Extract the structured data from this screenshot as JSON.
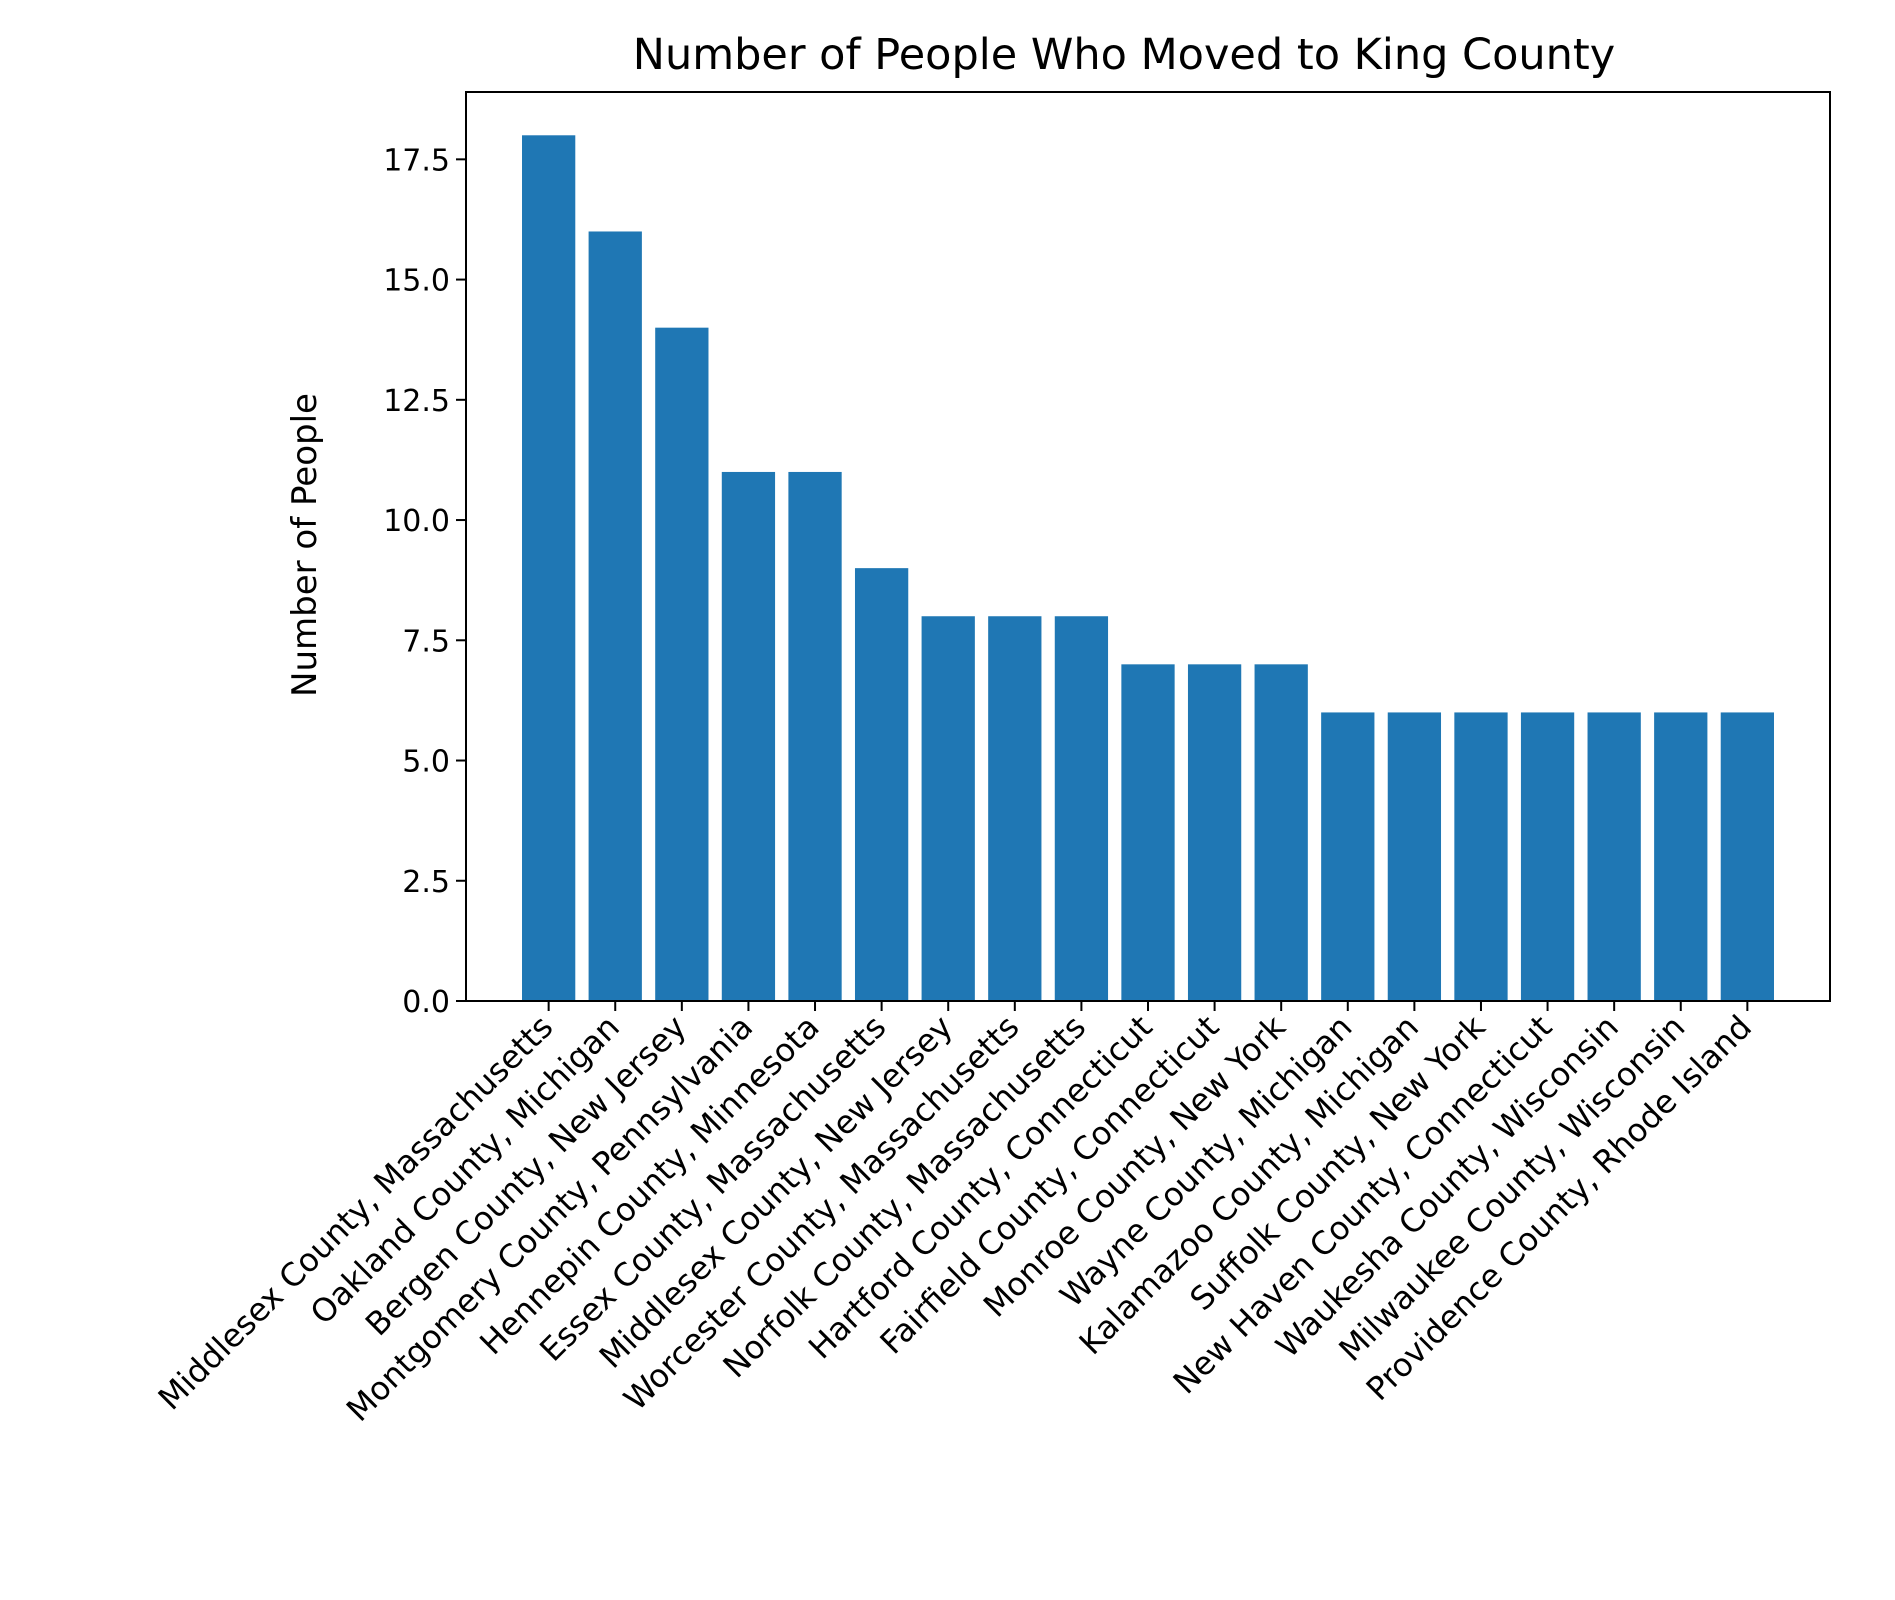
{
  "chart_data": {
    "type": "bar",
    "title": "Number of People Who Moved to King County",
    "xlabel": "",
    "ylabel": "Number of People",
    "ylim": [
      0,
      18.9
    ],
    "yticks": [
      "0.0",
      "2.5",
      "5.0",
      "7.5",
      "10.0",
      "12.5",
      "15.0",
      "17.5"
    ],
    "grid": false,
    "bar_color": "#1f77b4",
    "categories": [
      "Middlesex County, Massachusetts",
      "Oakland County, Michigan",
      "Bergen County, New Jersey",
      "Montgomery County, Pennsylvania",
      "Hennepin County, Minnesota",
      "Essex County, Massachusetts",
      "Middlesex County, New Jersey",
      "Worcester County, Massachusetts",
      "Norfolk County, Massachusetts",
      "Hartford County, Connecticut",
      "Fairfield County, Connecticut",
      "Monroe County, New York",
      "Wayne County, Michigan",
      "Kalamazoo County, Michigan",
      "Suffolk County, New York",
      "New Haven County, Connecticut",
      "Waukesha County, Wisconsin",
      "Milwaukee County, Wisconsin",
      "Providence County, Rhode Island"
    ],
    "values": [
      18,
      16,
      14,
      11,
      11,
      9,
      8,
      8,
      8,
      7,
      7,
      7,
      6,
      6,
      6,
      6,
      6,
      6,
      6
    ]
  }
}
